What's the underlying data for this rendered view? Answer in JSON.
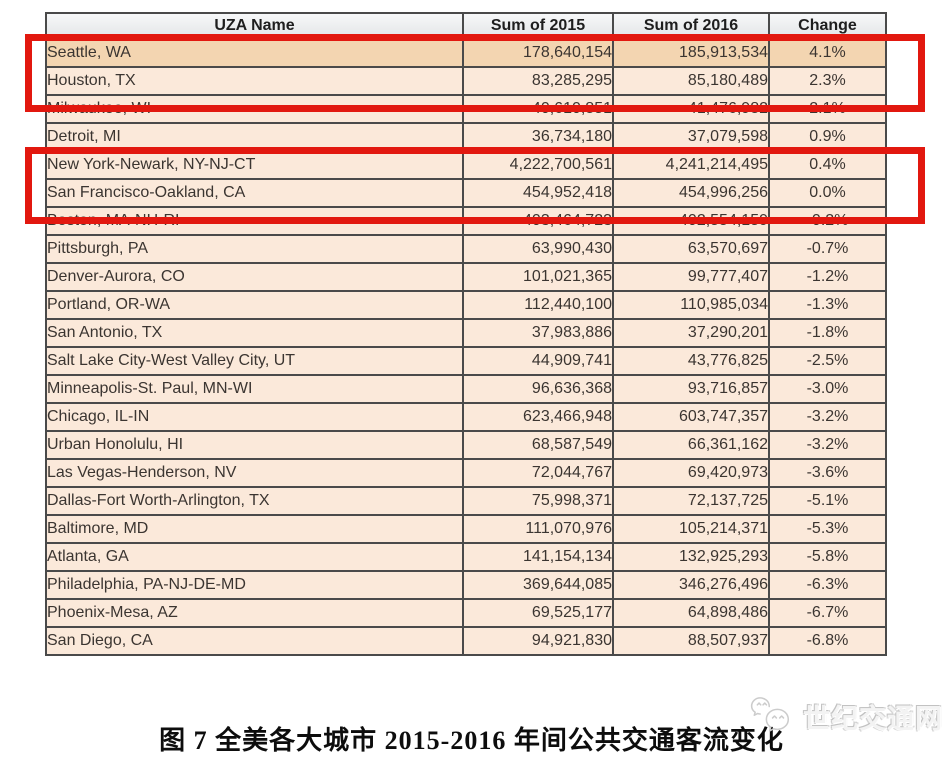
{
  "caption": "图 7 全美各大城市 2015-2016 年间公共交通客流变化",
  "watermark": {
    "text": "世纪交通网",
    "icon": "wechat-icon"
  },
  "colors": {
    "row_bg": "#fbe9da",
    "highlight_row_bg": "#f3d5b1",
    "header_bg": "#ebedef",
    "border": "#4a4a4a",
    "red_box": "#e2180f",
    "text": "#3b3531"
  },
  "table": {
    "headers": [
      "UZA Name",
      "Sum of 2015",
      "Sum of 2016",
      "Change"
    ],
    "highlight_row": "Seattle, WA",
    "red_boxed_rows": [
      [
        "Seattle, WA",
        "Houston, TX"
      ],
      [
        "New York-Newark, NY-NJ-CT",
        "San Francisco-Oakland, CA"
      ]
    ],
    "rows": [
      [
        "Seattle, WA",
        "178,640,154",
        "185,913,534",
        "4.1%"
      ],
      [
        "Houston, TX",
        "83,285,295",
        "85,180,489",
        "2.3%"
      ],
      [
        "Milwaukee, WI",
        "40,610,851",
        "41,476,982",
        "2.1%"
      ],
      [
        "Detroit, MI",
        "36,734,180",
        "37,079,598",
        "0.9%"
      ],
      [
        "New York-Newark, NY-NJ-CT",
        "4,222,700,561",
        "4,241,214,495",
        "0.4%"
      ],
      [
        "San Francisco-Oakland, CA",
        "454,952,418",
        "454,996,256",
        "0.0%"
      ],
      [
        "Boston, MA-NH-RI",
        "403,464,723",
        "402,554,159",
        "-0.2%"
      ],
      [
        "Pittsburgh, PA",
        "63,990,430",
        "63,570,697",
        "-0.7%"
      ],
      [
        "Denver-Aurora, CO",
        "101,021,365",
        "99,777,407",
        "-1.2%"
      ],
      [
        "Portland, OR-WA",
        "112,440,100",
        "110,985,034",
        "-1.3%"
      ],
      [
        "San Antonio, TX",
        "37,983,886",
        "37,290,201",
        "-1.8%"
      ],
      [
        "Salt Lake City-West Valley City, UT",
        "44,909,741",
        "43,776,825",
        "-2.5%"
      ],
      [
        "Minneapolis-St. Paul, MN-WI",
        "96,636,368",
        "93,716,857",
        "-3.0%"
      ],
      [
        "Chicago, IL-IN",
        "623,466,948",
        "603,747,357",
        "-3.2%"
      ],
      [
        "Urban Honolulu, HI",
        "68,587,549",
        "66,361,162",
        "-3.2%"
      ],
      [
        "Las Vegas-Henderson, NV",
        "72,044,767",
        "69,420,973",
        "-3.6%"
      ],
      [
        "Dallas-Fort Worth-Arlington, TX",
        "75,998,371",
        "72,137,725",
        "-5.1%"
      ],
      [
        "Baltimore, MD",
        "111,070,976",
        "105,214,371",
        "-5.3%"
      ],
      [
        "Atlanta, GA",
        "141,154,134",
        "132,925,293",
        "-5.8%"
      ],
      [
        "Philadelphia, PA-NJ-DE-MD",
        "369,644,085",
        "346,276,496",
        "-6.3%"
      ],
      [
        "Phoenix-Mesa, AZ",
        "69,525,177",
        "64,898,486",
        "-6.7%"
      ],
      [
        "San Diego, CA",
        "94,921,830",
        "88,507,937",
        "-6.8%"
      ]
    ]
  },
  "chart_data": {
    "type": "table",
    "title": "图 7 全美各大城市 2015-2016 年间公共交通客流变化",
    "columns": [
      "UZA Name",
      "Sum of 2015",
      "Sum of 2016",
      "Change"
    ],
    "rows": [
      {
        "uza": "Seattle, WA",
        "sum_2015": 178640154,
        "sum_2016": 185913534,
        "change_pct": 4.1
      },
      {
        "uza": "Houston, TX",
        "sum_2015": 83285295,
        "sum_2016": 85180489,
        "change_pct": 2.3
      },
      {
        "uza": "Milwaukee, WI",
        "sum_2015": 40610851,
        "sum_2016": 41476982,
        "change_pct": 2.1
      },
      {
        "uza": "Detroit, MI",
        "sum_2015": 36734180,
        "sum_2016": 37079598,
        "change_pct": 0.9
      },
      {
        "uza": "New York-Newark, NY-NJ-CT",
        "sum_2015": 4222700561,
        "sum_2016": 4241214495,
        "change_pct": 0.4
      },
      {
        "uza": "San Francisco-Oakland, CA",
        "sum_2015": 454952418,
        "sum_2016": 454996256,
        "change_pct": 0.0
      },
      {
        "uza": "Boston, MA-NH-RI",
        "sum_2015": 403464723,
        "sum_2016": 402554159,
        "change_pct": -0.2
      },
      {
        "uza": "Pittsburgh, PA",
        "sum_2015": 63990430,
        "sum_2016": 63570697,
        "change_pct": -0.7
      },
      {
        "uza": "Denver-Aurora, CO",
        "sum_2015": 101021365,
        "sum_2016": 99777407,
        "change_pct": -1.2
      },
      {
        "uza": "Portland, OR-WA",
        "sum_2015": 112440100,
        "sum_2016": 110985034,
        "change_pct": -1.3
      },
      {
        "uza": "San Antonio, TX",
        "sum_2015": 37983886,
        "sum_2016": 37290201,
        "change_pct": -1.8
      },
      {
        "uza": "Salt Lake City-West Valley City, UT",
        "sum_2015": 44909741,
        "sum_2016": 43776825,
        "change_pct": -2.5
      },
      {
        "uza": "Minneapolis-St. Paul, MN-WI",
        "sum_2015": 96636368,
        "sum_2016": 93716857,
        "change_pct": -3.0
      },
      {
        "uza": "Chicago, IL-IN",
        "sum_2015": 623466948,
        "sum_2016": 603747357,
        "change_pct": -3.2
      },
      {
        "uza": "Urban Honolulu, HI",
        "sum_2015": 68587549,
        "sum_2016": 66361162,
        "change_pct": -3.2
      },
      {
        "uza": "Las Vegas-Henderson, NV",
        "sum_2015": 72044767,
        "sum_2016": 69420973,
        "change_pct": -3.6
      },
      {
        "uza": "Dallas-Fort Worth-Arlington, TX",
        "sum_2015": 75998371,
        "sum_2016": 72137725,
        "change_pct": -5.1
      },
      {
        "uza": "Baltimore, MD",
        "sum_2015": 111070976,
        "sum_2016": 105214371,
        "change_pct": -5.3
      },
      {
        "uza": "Atlanta, GA",
        "sum_2015": 141154134,
        "sum_2016": 132925293,
        "change_pct": -5.8
      },
      {
        "uza": "Philadelphia, PA-NJ-DE-MD",
        "sum_2015": 369644085,
        "sum_2016": 346276496,
        "change_pct": -6.3
      },
      {
        "uza": "Phoenix-Mesa, AZ",
        "sum_2015": 69525177,
        "sum_2016": 64898486,
        "change_pct": -6.7
      },
      {
        "uza": "San Diego, CA",
        "sum_2015": 94921830,
        "sum_2016": 88507937,
        "change_pct": -6.8
      }
    ]
  }
}
